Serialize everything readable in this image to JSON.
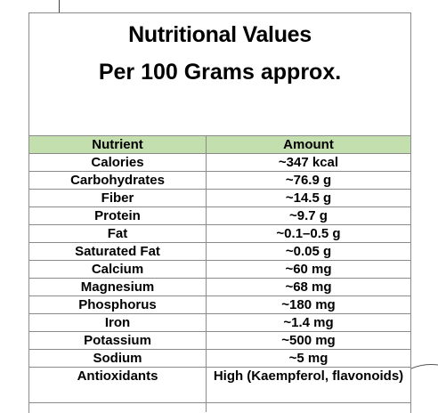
{
  "document": {
    "title": "Nutritional Values",
    "subtitle": "Per 100 Grams approx."
  },
  "table": {
    "headers": [
      "Nutrient",
      "Amount"
    ],
    "rows": [
      {
        "nutrient": "Calories",
        "amount": "~347 kcal"
      },
      {
        "nutrient": "Carbohydrates",
        "amount": "~76.9 g"
      },
      {
        "nutrient": "Fiber",
        "amount": "~14.5 g"
      },
      {
        "nutrient": "Protein",
        "amount": "~9.7 g"
      },
      {
        "nutrient": "Fat",
        "amount": "~0.1–0.5 g"
      },
      {
        "nutrient": "Saturated Fat",
        "amount": "~0.05 g"
      },
      {
        "nutrient": "Calcium",
        "amount": "~60 mg"
      },
      {
        "nutrient": "Magnesium",
        "amount": "~68 mg"
      },
      {
        "nutrient": "Phosphorus",
        "amount": "~180 mg"
      },
      {
        "nutrient": "Iron",
        "amount": "~1.4 mg"
      },
      {
        "nutrient": "Potassium",
        "amount": "~500 mg"
      },
      {
        "nutrient": "Sodium",
        "amount": "~5 mg"
      },
      {
        "nutrient": "Antioxidants",
        "amount": "High (Kaempferol, flavonoids)"
      }
    ]
  },
  "colors": {
    "header_bg": "#c4dfae",
    "border": "#8a8a8a"
  }
}
